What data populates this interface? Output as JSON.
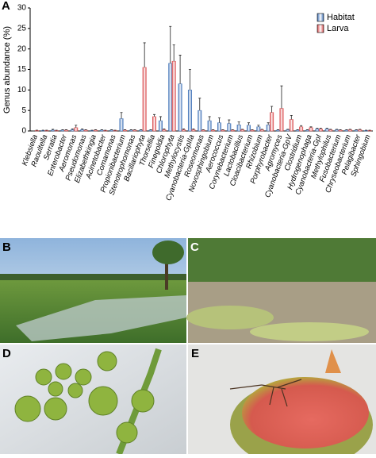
{
  "chart_data": {
    "type": "bar",
    "panel": "A",
    "ylabel": "Genus abundance (%)",
    "ylim": [
      0,
      30
    ],
    "yticks": [
      0,
      5,
      10,
      15,
      20,
      25,
      30
    ],
    "legend": "top-right",
    "categories": [
      "Klebsiella",
      "Raoultella",
      "Serratia",
      "Enterobacter",
      "Aeromonas",
      "Pseudomonas",
      "Elizabethkingia",
      "Acinetobacter",
      "Comamonas",
      "Propionibacterium",
      "Stenotrophomonas",
      "Bacillariophyta",
      "Thorsellia",
      "Finegoldia",
      "Chlorophyta",
      "Methylocystis",
      "Cyanobacteria-GpIIa",
      "Roseomonas",
      "Novosphingobium",
      "Aerococcus",
      "Corynebacterium",
      "Lactobacillus",
      "Cloacibacterium",
      "Rhizobium",
      "Porphyrobacter",
      "Agromyces",
      "Cyanobacteria-GpV",
      "Clostridium",
      "Hydrogenophaga",
      "Cyanobacteria-GpI",
      "Methylophilus",
      "Fusobacterium",
      "Chryseobacterium",
      "Pelagibacter",
      "Sphingobium"
    ],
    "series": [
      {
        "name": "Habitat",
        "color": "#3b6fb6",
        "values": [
          0,
          0.1,
          0.2,
          0.2,
          0.3,
          0.3,
          0.1,
          0.2,
          0.2,
          3,
          0.2,
          0.2,
          0.2,
          2.5,
          16.5,
          11.5,
          10,
          5,
          2.5,
          2,
          1.8,
          1.5,
          1.4,
          1,
          1.5,
          0.2,
          0.3,
          0.2,
          0.2,
          0.5,
          0.5,
          0.3,
          0.2,
          0.2,
          0.1
        ],
        "errors": [
          0,
          0.1,
          0.2,
          0.1,
          0.2,
          0.2,
          0.1,
          0.1,
          0.1,
          1.5,
          0.1,
          0.1,
          0.1,
          1,
          9,
          7,
          5,
          3,
          1,
          1.2,
          0.9,
          0.7,
          0.6,
          0.4,
          0.5,
          0.1,
          0.1,
          0.1,
          0.1,
          0.2,
          0.2,
          0.1,
          0.1,
          0.1,
          0.1
        ]
      },
      {
        "name": "Larva",
        "color": "#d9484a",
        "values": [
          0.1,
          0.1,
          0.1,
          0.2,
          0.8,
          0.2,
          0.2,
          0.1,
          0.1,
          0.2,
          0.2,
          15.5,
          3.5,
          0.3,
          17,
          0.3,
          0.3,
          0.2,
          0.2,
          0.2,
          0.2,
          0.3,
          0.2,
          0.3,
          4.5,
          5.5,
          2.8,
          1,
          0.8,
          0.5,
          0.3,
          0.2,
          0.3,
          0.3,
          0.1
        ],
        "errors": [
          0.1,
          0.1,
          0.1,
          0.1,
          0.6,
          0.1,
          0.1,
          0.1,
          0.1,
          0.1,
          0.1,
          6,
          0.5,
          0.2,
          4,
          0.2,
          0.2,
          0.1,
          0.1,
          0.1,
          0.1,
          0.1,
          0.1,
          0.1,
          1.5,
          5.5,
          1,
          0.3,
          0.2,
          0.2,
          0.1,
          0.1,
          0.1,
          0.1,
          0.1
        ]
      }
    ]
  },
  "photos": [
    {
      "panel": "B"
    },
    {
      "panel": "C"
    },
    {
      "panel": "D"
    },
    {
      "panel": "E"
    }
  ]
}
